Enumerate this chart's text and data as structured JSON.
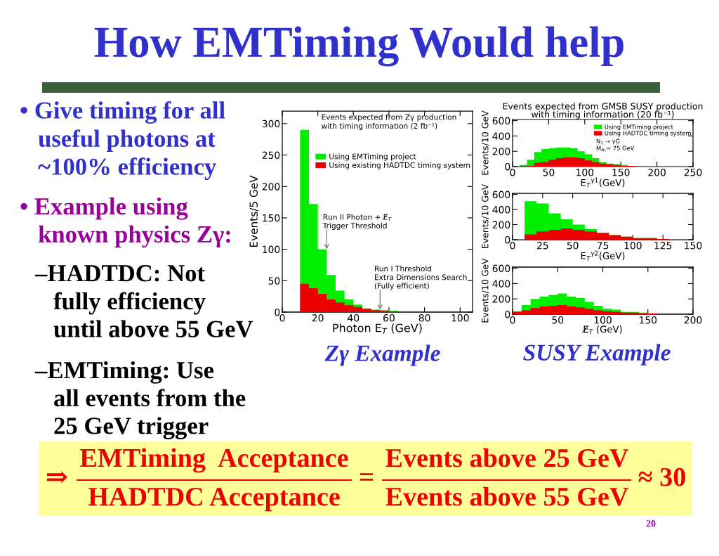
{
  "chart_data": [
    {
      "type": "other",
      "title": "How EMTiming Would help",
      "annotations": [
        "• Give timing for all\n   useful photons at\n   ~100% efficiency",
        "• Example using\n   known physics Zγ:",
        "–HADTDC: Not\n   fully efficiency\n   until above 55 GeV",
        "–EMTiming: Use\n   all events from the\n   25 GeV trigger",
        "⇒",
        "EMTiming  Acceptance",
        "HADTDC Acceptance",
        "=",
        "Events above 25 GeV",
        "Events above 55 GeV",
        "≈ 30",
        "20"
      ]
    },
    {
      "type": "histogram",
      "title": "Events expected from Zγ production\nwith timing information (2 fb⁻¹)",
      "xlabel": "Photon E$_{T}$ (GeV)",
      "ylabel": "Events/5 GeV",
      "bins": [
        10,
        15,
        20,
        25,
        30,
        35,
        40,
        45,
        50,
        55,
        60,
        65,
        70
      ],
      "series": [
        {
          "name": "Using EMTiming project",
          "color": "#00ee00",
          "values": [
            290,
            172,
            100,
            59,
            34,
            20,
            12,
            6,
            4,
            3,
            2,
            1
          ]
        },
        {
          "name": "Using existing HADTDC timing system",
          "color": "#ee0000",
          "values": [
            45,
            38,
            29,
            20,
            15,
            11,
            8,
            5,
            3,
            2,
            1,
            1
          ]
        }
      ],
      "xlim": [
        0,
        107
      ],
      "ylim": [
        0,
        320
      ],
      "xticks": [
        0,
        20,
        40,
        60,
        80,
        100
      ],
      "yticks": [
        0,
        50,
        100,
        150,
        200,
        250,
        300
      ],
      "legend": "top right",
      "annotations": [
        {
          "text": "Run II Photon + E̸$_{T}$\nTrigger Threshold",
          "x": 25,
          "y": 100
        },
        {
          "text": "Run I Threshold\nExtra Dimensions Search\n(Fully efficient)",
          "x": 55,
          "y": 4
        },
        "Zγ Example"
      ]
    },
    {
      "type": "histogram",
      "title": "Events expected from GMSB SUSY production\nwith timing information (20 fb⁻¹)",
      "xlabel": "E$_{T}$$^{γ1}$(GeV)",
      "ylabel": "Events/10 GeV",
      "bins": [
        10,
        20,
        30,
        40,
        50,
        60,
        70,
        80,
        90,
        100,
        110,
        120,
        130,
        140,
        150,
        160,
        170
      ],
      "series": [
        {
          "name": "Using EMTiming project",
          "color": "#00ee00",
          "values": [
            20,
            90,
            190,
            230,
            240,
            250,
            250,
            240,
            200,
            160,
            110,
            60,
            40,
            30,
            20,
            10
          ]
        },
        {
          "name": "Using HADTDC timing system",
          "color": "#ee0000",
          "values": [
            0,
            10,
            50,
            60,
            90,
            110,
            120,
            120,
            110,
            80,
            60,
            40,
            30,
            20,
            10,
            10
          ]
        }
      ],
      "xlim": [
        0,
        250
      ],
      "ylim": [
        0,
        615
      ],
      "xticks": [
        0,
        50,
        100,
        150,
        200,
        250
      ],
      "yticks": [
        0,
        200,
        400,
        600
      ],
      "legend": "top right",
      "annotations": [
        "N$_{1}$ → γG̃",
        "M$_{N₁}$= 75 GeV"
      ]
    },
    {
      "type": "histogram",
      "xlabel": "E$_{T}$$^{γ2}$(GeV)",
      "ylabel": "Events/10 GeV",
      "bins": [
        10,
        20,
        30,
        40,
        50,
        60,
        70,
        80,
        90,
        100,
        110,
        120,
        130
      ],
      "series": [
        {
          "color": "#00ee00",
          "values": [
            510,
            480,
            350,
            270,
            200,
            140,
            90,
            60,
            40,
            20,
            20,
            10
          ]
        },
        {
          "color": "#ee0000",
          "values": [
            70,
            110,
            130,
            150,
            130,
            110,
            90,
            60,
            40,
            20,
            20,
            10
          ]
        }
      ],
      "xlim": [
        0,
        150
      ],
      "ylim": [
        0,
        615
      ],
      "xticks": [
        0,
        25,
        50,
        75,
        100,
        125,
        150
      ],
      "yticks": [
        0,
        200,
        400,
        600
      ]
    },
    {
      "type": "histogram",
      "xlabel": "E̸$_{T}$ (GeV)",
      "ylabel": "Events/10 GeV",
      "bins": [
        0,
        10,
        20,
        30,
        40,
        50,
        60,
        70,
        80,
        90,
        100,
        110,
        120,
        130,
        140,
        150,
        160
      ],
      "series": [
        {
          "color": "#00ee00",
          "values": [
            40,
            120,
            200,
            230,
            250,
            270,
            230,
            210,
            160,
            110,
            70,
            60,
            30,
            30,
            20,
            10
          ]
        },
        {
          "color": "#ee0000",
          "values": [
            30,
            50,
            80,
            100,
            110,
            120,
            100,
            90,
            70,
            50,
            40,
            30,
            20,
            20,
            10,
            10
          ]
        }
      ],
      "xlim": [
        0,
        200
      ],
      "ylim": [
        0,
        615
      ],
      "xticks": [
        0,
        50,
        100,
        150,
        200
      ],
      "yticks": [
        0,
        200,
        400,
        600
      ],
      "annotations": [
        "SUSY Example"
      ]
    }
  ]
}
